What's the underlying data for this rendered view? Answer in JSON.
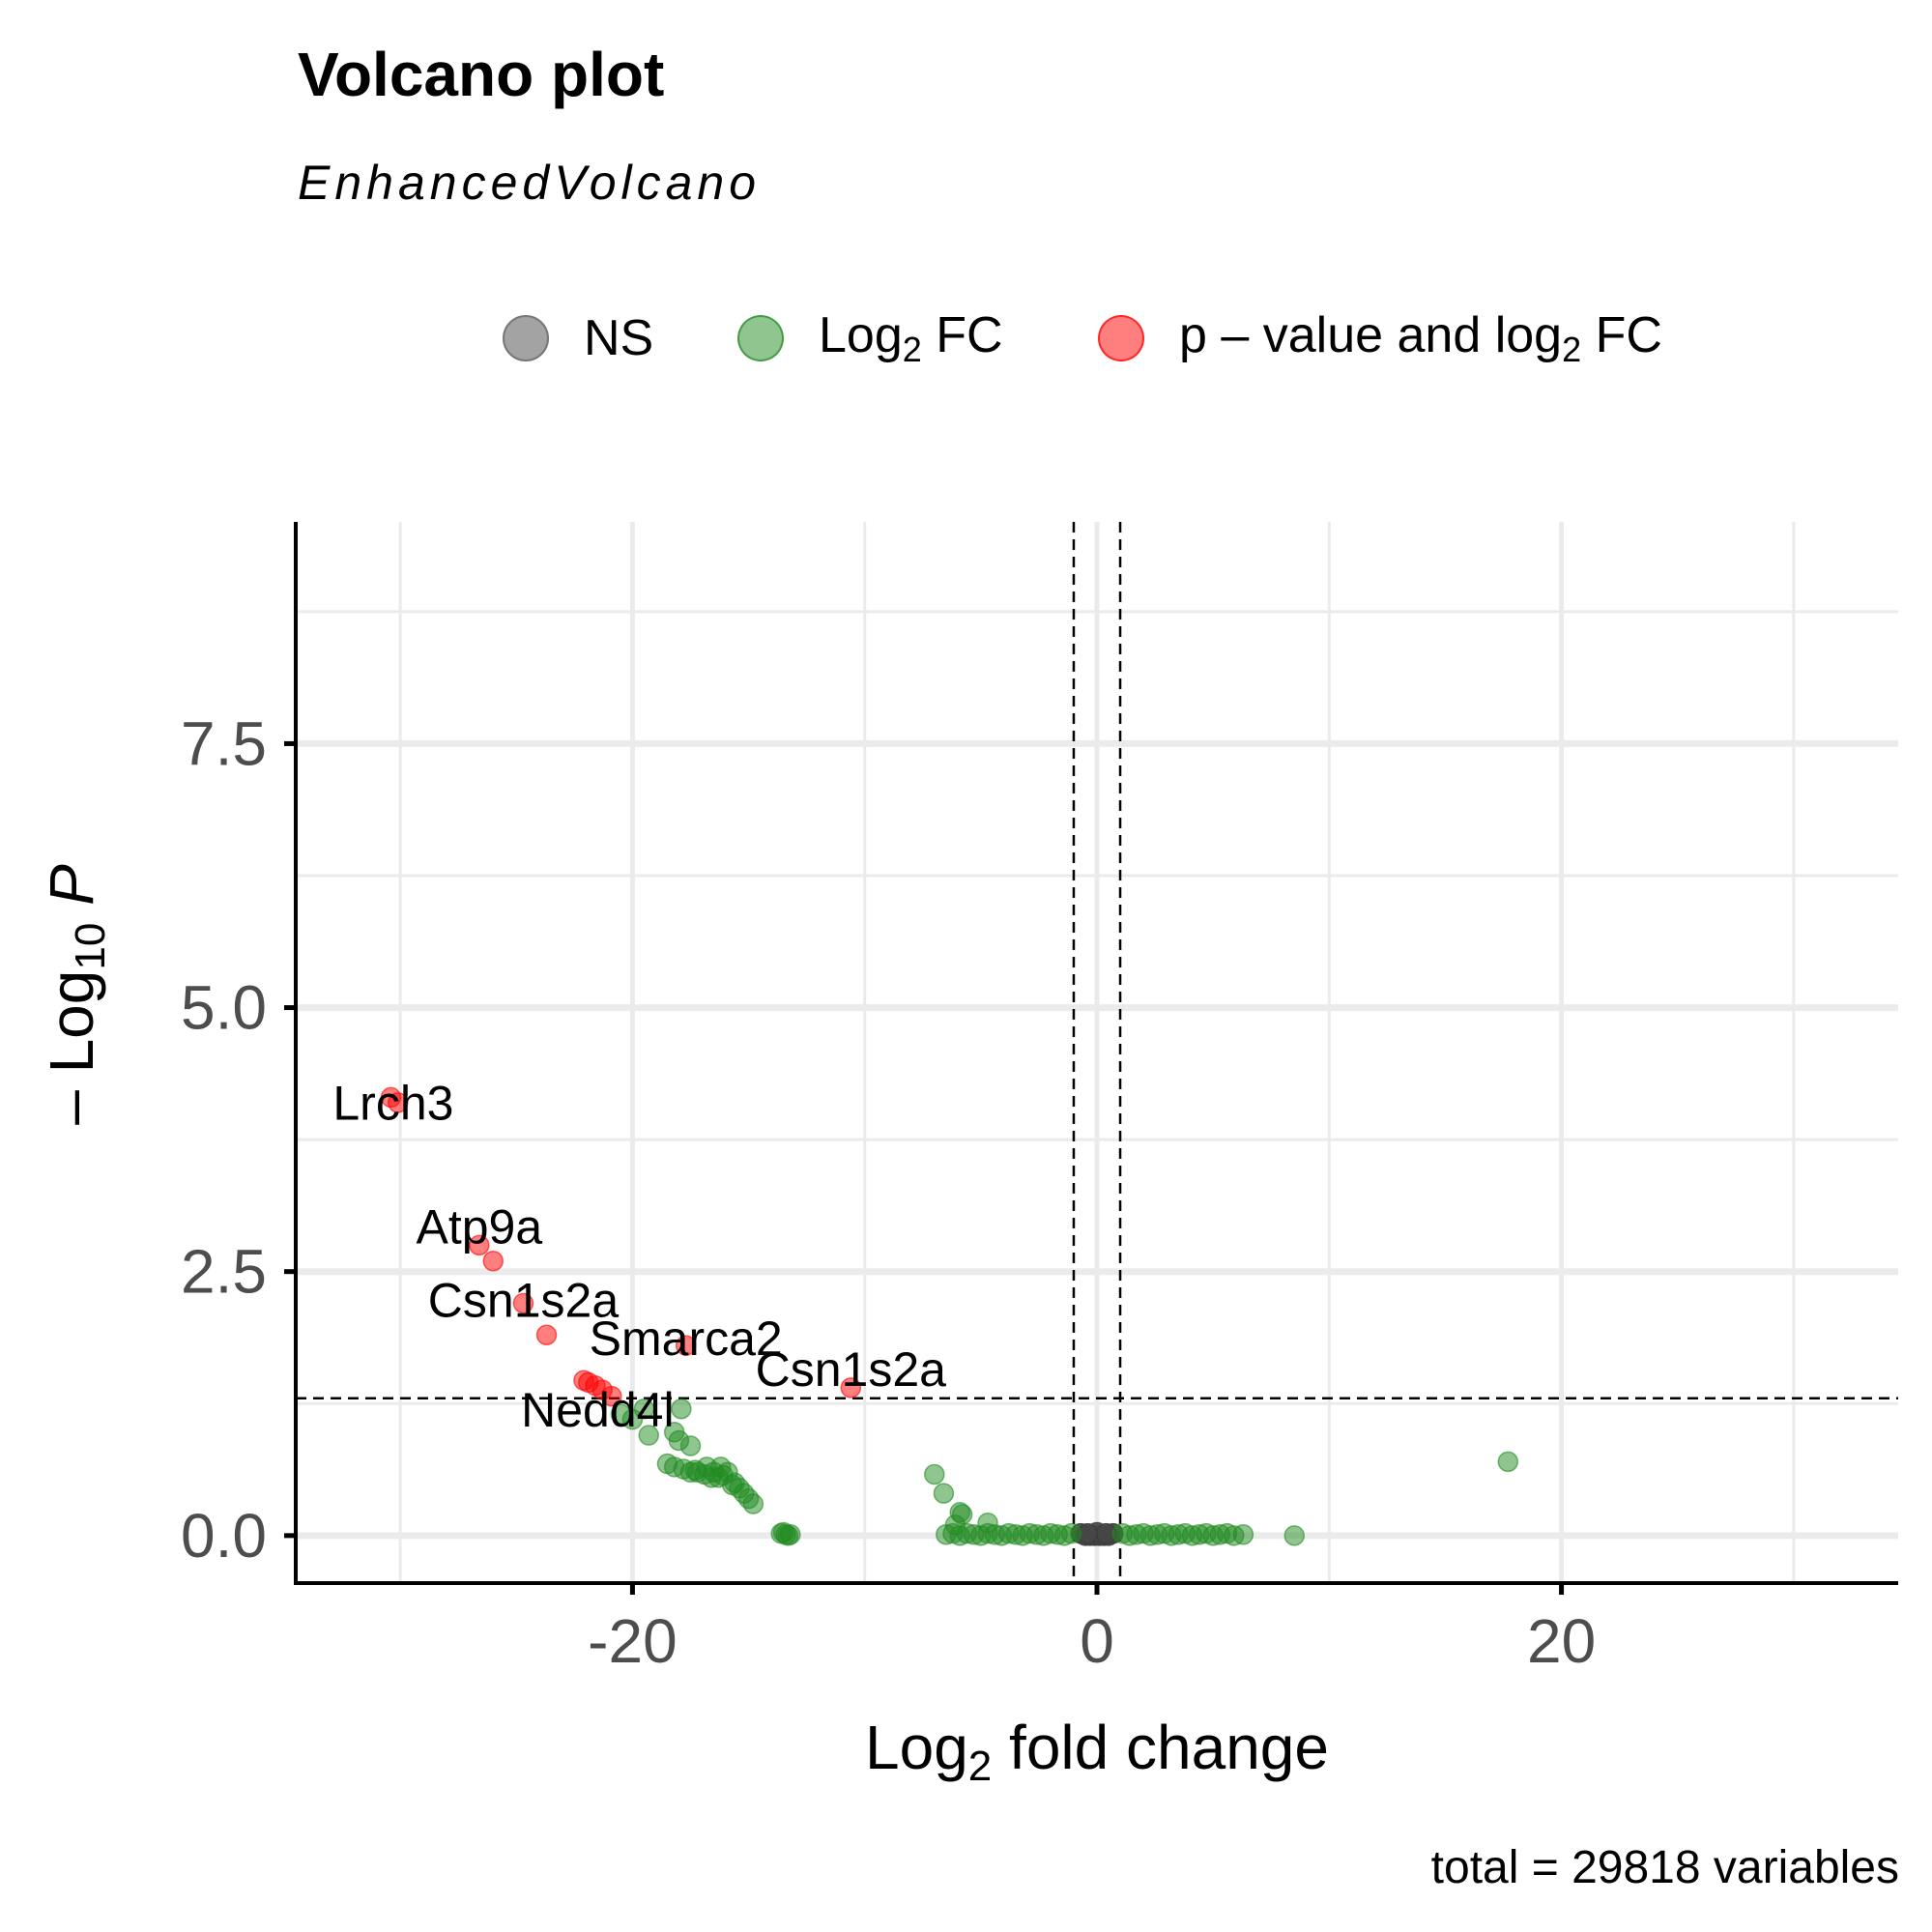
{
  "title": "Volcano plot",
  "subtitle": "EnhancedVolcano",
  "caption": "total = 29818 variables",
  "legend": {
    "ns": {
      "label": "NS",
      "color": "#8c8c8c"
    },
    "fc": {
      "label_main": "Log",
      "label_sub": "2",
      "label_tail": " FC",
      "color": "#228b22"
    },
    "pfc": {
      "label_main": "p – value and log",
      "label_sub": "2",
      "label_tail": " FC",
      "color": "#ff0000"
    }
  },
  "chart_data": {
    "type": "scatter",
    "title": "Volcano plot",
    "subtitle": "EnhancedVolcano",
    "xlabel": "Log2 fold change",
    "ylabel": "– Log10 P",
    "xlim": [
      -34.5,
      34.5
    ],
    "ylim": [
      -0.45,
      9.6
    ],
    "x_ticks": [
      -20,
      0,
      20
    ],
    "x_tick_labels": [
      "-20",
      "0",
      "20"
    ],
    "y_ticks": [
      0,
      2.5,
      5,
      7.5
    ],
    "y_tick_labels": [
      "0.0",
      "2.5",
      "5.0",
      "7.5"
    ],
    "grid": true,
    "legend_position": "top",
    "thresholds": {
      "fc_cutoff": 1,
      "p_cutoff_neglog10": 1.3
    },
    "series": [
      {
        "name": "NS",
        "color": "#8c8c8c",
        "points": [
          [
            -0.5,
            0
          ],
          [
            -0.3,
            0
          ],
          [
            -0.1,
            0
          ],
          [
            0.1,
            0
          ],
          [
            0.3,
            0
          ],
          [
            0.5,
            0
          ],
          [
            0.7,
            0.02
          ],
          [
            -0.7,
            0.02
          ],
          [
            0,
            0.03
          ],
          [
            0.4,
            0.02
          ],
          [
            -0.4,
            0.02
          ]
        ]
      },
      {
        "name": "Log2 FC",
        "color": "#228b22",
        "points": [
          [
            -20.5,
            1.15
          ],
          [
            -20,
            1.1
          ],
          [
            -19.5,
            1.2
          ],
          [
            -17.9,
            1.2
          ],
          [
            -19.3,
            0.95
          ],
          [
            -18.2,
            0.98
          ],
          [
            -18,
            0.9
          ],
          [
            -17.5,
            0.85
          ],
          [
            -18.5,
            0.68
          ],
          [
            -18.2,
            0.65
          ],
          [
            -17.8,
            0.63
          ],
          [
            -17.5,
            0.6
          ],
          [
            -17.2,
            0.6
          ],
          [
            -16.9,
            0.58
          ],
          [
            -16.6,
            0.55
          ],
          [
            -16.3,
            0.55
          ],
          [
            -16.8,
            0.65
          ],
          [
            -16.5,
            0.6
          ],
          [
            -16.2,
            0.65
          ],
          [
            -15.9,
            0.6
          ],
          [
            -15.6,
            0.5
          ],
          [
            -15.4,
            0.45
          ],
          [
            -15.2,
            0.4
          ],
          [
            -15,
            0.35
          ],
          [
            -14.8,
            0.3
          ],
          [
            -17.3,
            0.62
          ],
          [
            -16.1,
            0.57
          ],
          [
            -15.7,
            0.48
          ],
          [
            -13.6,
            0.02
          ],
          [
            -13.4,
            0.01
          ],
          [
            -13.2,
            0.01
          ],
          [
            -13.5,
            0.03
          ],
          [
            -13.3,
            0
          ],
          [
            -7,
            0.58
          ],
          [
            -6.6,
            0.4
          ],
          [
            -5.9,
            0.22
          ],
          [
            -5.8,
            0.2
          ],
          [
            -6.1,
            0.1
          ],
          [
            -4.7,
            0.12
          ],
          [
            -6.5,
            0.01
          ],
          [
            -6.2,
            0.02
          ],
          [
            -5.9,
            0
          ],
          [
            -5.6,
            0.02
          ],
          [
            -5.3,
            0.01
          ],
          [
            -5,
            0
          ],
          [
            -4.7,
            0.02
          ],
          [
            -4.4,
            0.01
          ],
          [
            -4.1,
            0
          ],
          [
            -3.8,
            0.02
          ],
          [
            -3.5,
            0.01
          ],
          [
            -3.2,
            0
          ],
          [
            -2.9,
            0.02
          ],
          [
            -2.6,
            0.01
          ],
          [
            -2.3,
            0
          ],
          [
            -2,
            0.02
          ],
          [
            -1.7,
            0.01
          ],
          [
            -1.4,
            0
          ],
          [
            -1.1,
            0.02
          ],
          [
            1.1,
            0.02
          ],
          [
            1.4,
            0
          ],
          [
            1.7,
            0.01
          ],
          [
            2,
            0.02
          ],
          [
            2.3,
            0
          ],
          [
            2.6,
            0.01
          ],
          [
            2.9,
            0.02
          ],
          [
            3.2,
            0
          ],
          [
            3.5,
            0.01
          ],
          [
            3.8,
            0.02
          ],
          [
            4.1,
            0
          ],
          [
            4.4,
            0.01
          ],
          [
            4.7,
            0.02
          ],
          [
            5,
            0
          ],
          [
            5.3,
            0.01
          ],
          [
            5.6,
            0.02
          ],
          [
            5.9,
            0
          ],
          [
            6.3,
            0.01
          ],
          [
            8.5,
            0
          ],
          [
            17.7,
            0.7
          ]
        ]
      },
      {
        "name": "p – value and log2 FC",
        "color": "#ff0000",
        "points": [
          [
            -30.4,
            4.15
          ],
          [
            -30.1,
            4.1
          ],
          [
            -26.6,
            2.75
          ],
          [
            -26,
            2.6
          ],
          [
            -24.7,
            2.2
          ],
          [
            -23.7,
            1.9
          ],
          [
            -17.7,
            1.8
          ],
          [
            -22.1,
            1.47
          ],
          [
            -21.9,
            1.45
          ],
          [
            -21.6,
            1.42
          ],
          [
            -21.3,
            1.38
          ],
          [
            -20.9,
            1.32
          ],
          [
            -10.6,
            1.4
          ]
        ]
      }
    ],
    "point_labels": [
      {
        "text": "Lrch3",
        "x": -30.3,
        "y": 4.12
      },
      {
        "text": "Atp9a",
        "x": -26.6,
        "y": 2.75
      },
      {
        "text": "Csn1s2a",
        "x": -24.7,
        "y": 2.2
      },
      {
        "text": "Smarca2",
        "x": -17.7,
        "y": 1.8
      },
      {
        "text": "Nedd4l",
        "x": -21.5,
        "y": 1.4
      },
      {
        "text": "Csn1s2a",
        "x": -10.6,
        "y": 1.4
      }
    ]
  }
}
